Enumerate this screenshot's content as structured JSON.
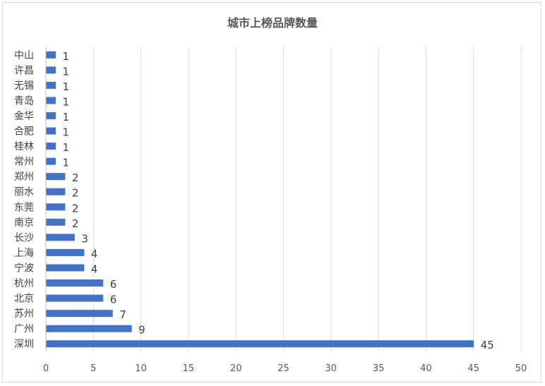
{
  "chart_data": {
    "type": "bar",
    "orientation": "horizontal",
    "title": "城市上榜品牌数量",
    "xlabel": "",
    "ylabel": "",
    "categories": [
      "中山",
      "许昌",
      "无锡",
      "青岛",
      "金华",
      "合肥",
      "桂林",
      "常州",
      "郑州",
      "丽水",
      "东莞",
      "南京",
      "长沙",
      "上海",
      "宁波",
      "杭州",
      "北京",
      "苏州",
      "广州",
      "深圳"
    ],
    "values": [
      1,
      1,
      1,
      1,
      1,
      1,
      1,
      1,
      2,
      2,
      2,
      2,
      3,
      4,
      4,
      6,
      6,
      7,
      9,
      45
    ],
    "xlim": [
      0,
      50
    ],
    "xticks": [
      0,
      5,
      10,
      15,
      20,
      25,
      30,
      35,
      40,
      45,
      50
    ],
    "grid": "vertical",
    "legend": "none",
    "data_labels": true,
    "colors": {
      "bar": "#4472c4",
      "grid": "#d9d9d9",
      "axis": "#bfbfbf"
    }
  }
}
